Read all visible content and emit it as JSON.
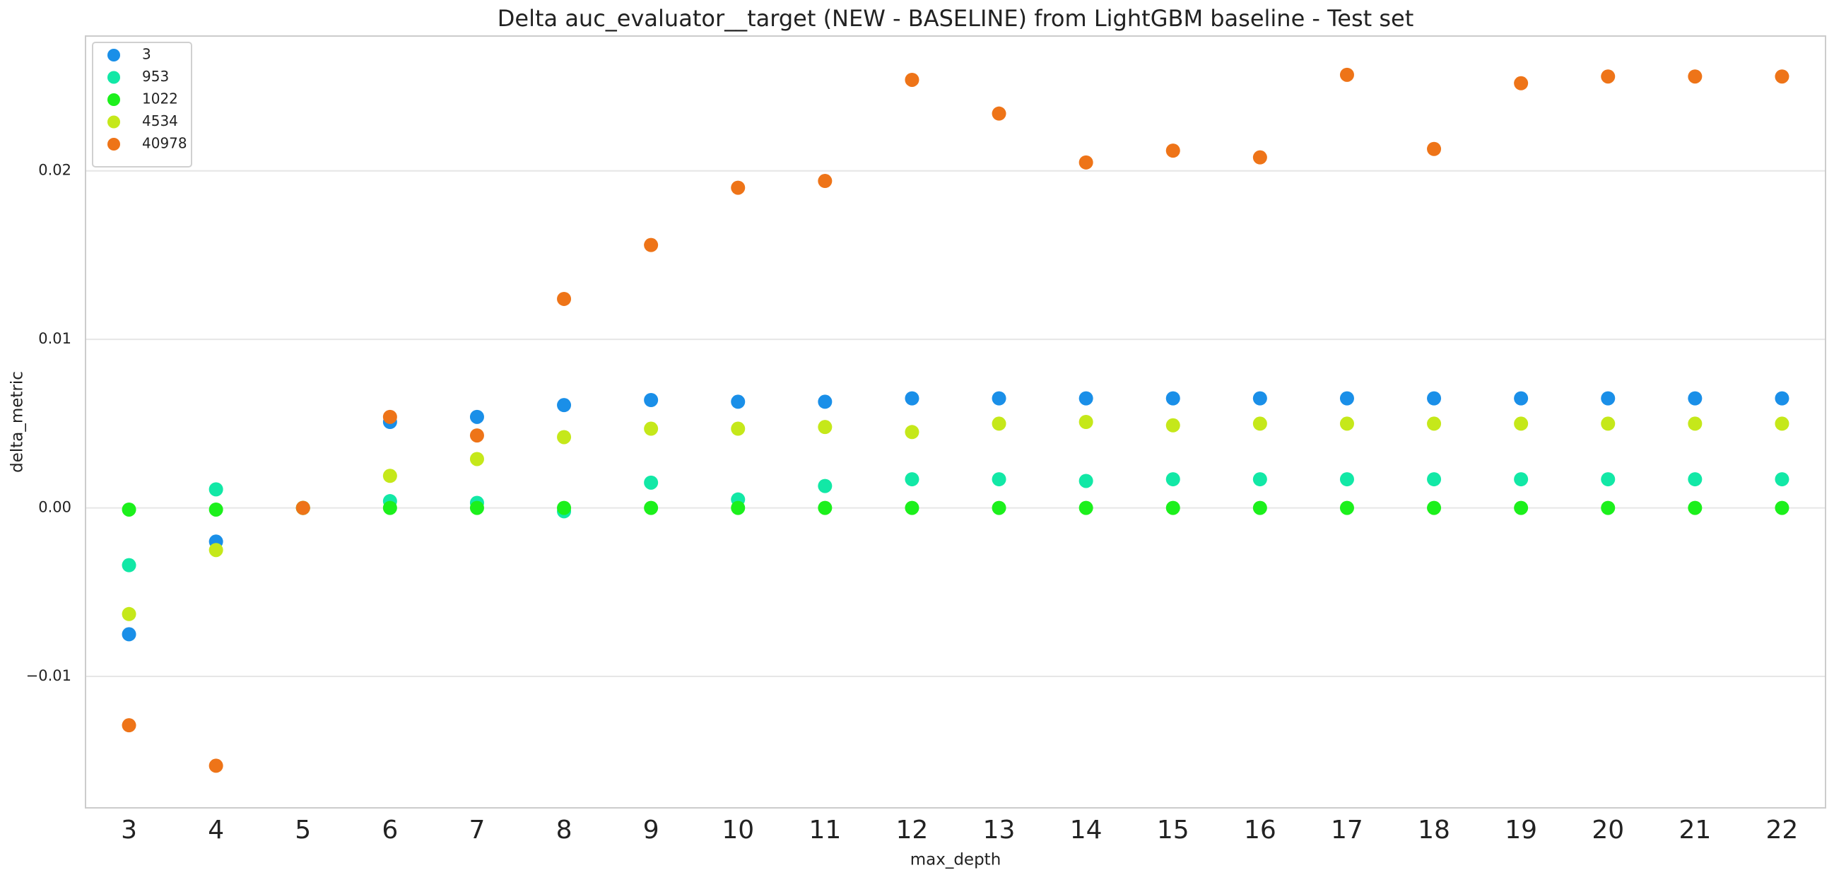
{
  "chart_data": {
    "type": "scatter",
    "title": "Delta auc_evaluator__target (NEW - BASELINE) from LightGBM baseline - Test set",
    "x_label": "max_depth",
    "y_label": "delta_metric",
    "x": [
      3,
      4,
      5,
      6,
      7,
      8,
      9,
      10,
      11,
      12,
      13,
      14,
      15,
      16,
      17,
      18,
      19,
      20,
      21,
      22
    ],
    "xlim": [
      2.5,
      22.5
    ],
    "xticks": [
      3,
      4,
      5,
      6,
      7,
      8,
      9,
      10,
      11,
      12,
      13,
      14,
      15,
      16,
      17,
      18,
      19,
      20,
      21,
      22
    ],
    "ylim": [
      -0.0178,
      0.028
    ],
    "yticks": [
      {
        "value": -0.01,
        "label": "−0.01"
      },
      {
        "value": 0,
        "label": "0.00"
      },
      0.01,
      0.02
    ],
    "grid": true,
    "legend": "upper left",
    "series": [
      {
        "name": "3",
        "color": "#1a8fe8",
        "values": [
          -0.0075,
          -0.002,
          0,
          0.0051,
          0.0054,
          0.0061,
          0.0064,
          0.0063,
          0.0063,
          0.0065,
          0.0065,
          0.0065,
          0.0065,
          0.0065,
          0.0065,
          0.0065,
          0.0065,
          0.0065,
          0.0065,
          0.0065
        ]
      },
      {
        "name": "953",
        "color": "#12e8a6",
        "values": [
          -0.0034,
          0.0011,
          0,
          0.0004,
          0.0003,
          -0.0002,
          0.0015,
          0.0005,
          0.0013,
          0.0017,
          0.0017,
          0.0016,
          0.0017,
          0.0017,
          0.0017,
          0.0017,
          0.0017,
          0.0017,
          0.0017,
          0.0017
        ]
      },
      {
        "name": "1022",
        "color": "#1cf01c",
        "values": [
          -0.0001,
          -0.0001,
          0,
          0,
          0,
          0,
          0,
          0,
          0,
          0,
          0,
          0,
          0,
          0,
          0,
          0,
          0,
          0,
          0,
          0
        ]
      },
      {
        "name": "4534",
        "color": "#c5e81a",
        "values": [
          -0.0063,
          -0.0025,
          0,
          0.0019,
          0.0029,
          0.0042,
          0.0047,
          0.0047,
          0.0048,
          0.0045,
          0.005,
          0.0051,
          0.0049,
          0.005,
          0.005,
          0.005,
          0.005,
          0.005,
          0.005,
          0.005
        ]
      },
      {
        "name": "40978",
        "color": "#ee7418",
        "values": [
          -0.0129,
          -0.0153,
          0,
          0.0054,
          0.0043,
          0.0124,
          0.0156,
          0.019,
          0.0194,
          0.0254,
          0.0234,
          0.0205,
          0.0212,
          0.0208,
          0.0257,
          0.0213,
          0.0252,
          0.0256,
          0.0256,
          0.0256
        ]
      }
    ]
  }
}
